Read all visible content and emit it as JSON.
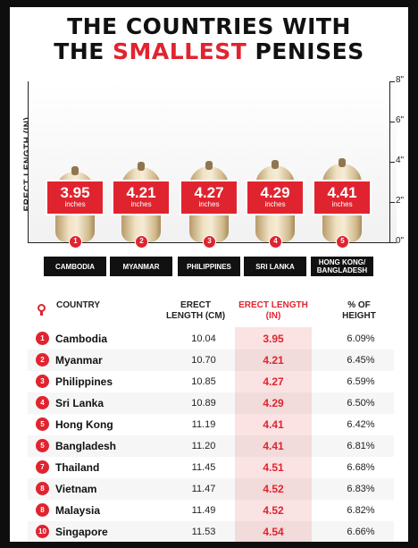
{
  "title": {
    "line1": "THE COUNTRIES WITH",
    "line2_pre": "THE ",
    "line2_accent": "SMALLEST",
    "line2_post": " PENISES"
  },
  "colors": {
    "accent": "#e0242f",
    "dark": "#111111",
    "highlight": "#fbe3e3"
  },
  "chart_data": {
    "type": "bar",
    "ylabel": "ERECT LENGTH (IN)",
    "ylim": [
      0,
      8
    ],
    "yticks": [
      "0\"",
      "2\"",
      "4\"",
      "6\"",
      "8\""
    ],
    "categories": [
      "CAMBODIA",
      "MYANMAR",
      "PHILIPPINES",
      "SRI LANKA",
      "HONG KONG/ BANGLADESH"
    ],
    "ranks": [
      "1",
      "2",
      "3",
      "4",
      "5"
    ],
    "values": [
      3.95,
      4.21,
      4.27,
      4.29,
      4.41
    ],
    "value_labels": [
      "3.95",
      "4.21",
      "4.27",
      "4.29",
      "4.41"
    ],
    "unit_label": "inches"
  },
  "table": {
    "headers": {
      "country": "COUNTRY",
      "cm": "ERECT LENGTH (CM)",
      "inches": "ERECT LENGTH (IN)",
      "pct": "% OF HEIGHT"
    },
    "rows": [
      {
        "rank": "1",
        "country": "Cambodia",
        "cm": "10.04",
        "inches": "3.95",
        "pct": "6.09%"
      },
      {
        "rank": "2",
        "country": "Myanmar",
        "cm": "10.70",
        "inches": "4.21",
        "pct": "6.45%"
      },
      {
        "rank": "3",
        "country": "Philippines",
        "cm": "10.85",
        "inches": "4.27",
        "pct": "6.59%"
      },
      {
        "rank": "4",
        "country": "Sri Lanka",
        "cm": "10.89",
        "inches": "4.29",
        "pct": "6.50%"
      },
      {
        "rank": "5",
        "country": "Hong Kong",
        "cm": "11.19",
        "inches": "4.41",
        "pct": "6.42%"
      },
      {
        "rank": "5",
        "country": "Bangladesh",
        "cm": "11.20",
        "inches": "4.41",
        "pct": "6.81%"
      },
      {
        "rank": "7",
        "country": "Thailand",
        "cm": "11.45",
        "inches": "4.51",
        "pct": "6.68%"
      },
      {
        "rank": "8",
        "country": "Vietnam",
        "cm": "11.47",
        "inches": "4.52",
        "pct": "6.83%"
      },
      {
        "rank": "8",
        "country": "Malaysia",
        "cm": "11.49",
        "inches": "4.52",
        "pct": "6.82%"
      },
      {
        "rank": "10",
        "country": "Singapore",
        "cm": "11.53",
        "inches": "4.54",
        "pct": "6.66%"
      }
    ]
  }
}
